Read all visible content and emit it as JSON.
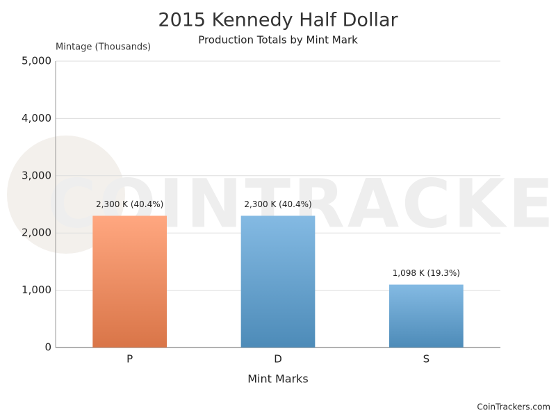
{
  "chart_data": {
    "type": "bar",
    "title": "2015 Kennedy Half Dollar",
    "subtitle": "Production Totals by Mint Mark",
    "y_label": "Mintage (Thousands)",
    "x_label": "Mint Marks",
    "categories": [
      "P",
      "D",
      "S"
    ],
    "values": [
      2300,
      2300,
      1098
    ],
    "value_labels": [
      "2,300 K (40.4%)",
      "2,300 K (40.4%)",
      "1,098 K (19.3%)"
    ],
    "colors": [
      "#ff8a55",
      "#5ba3d9",
      "#5ba3d9"
    ],
    "ylim": [
      0,
      5000
    ],
    "yticks": [
      0,
      {
        "value": 1000,
        "label": "1,000"
      },
      {
        "value": 2000,
        "label": "2,000"
      },
      {
        "value": 3000,
        "label": "3,000"
      },
      {
        "value": 4000,
        "label": "4,000"
      },
      {
        "value": 5000,
        "label": "5,000"
      }
    ],
    "grid": true,
    "watermark": "COINTRACKERS",
    "credit": "CoinTrackers.com"
  }
}
